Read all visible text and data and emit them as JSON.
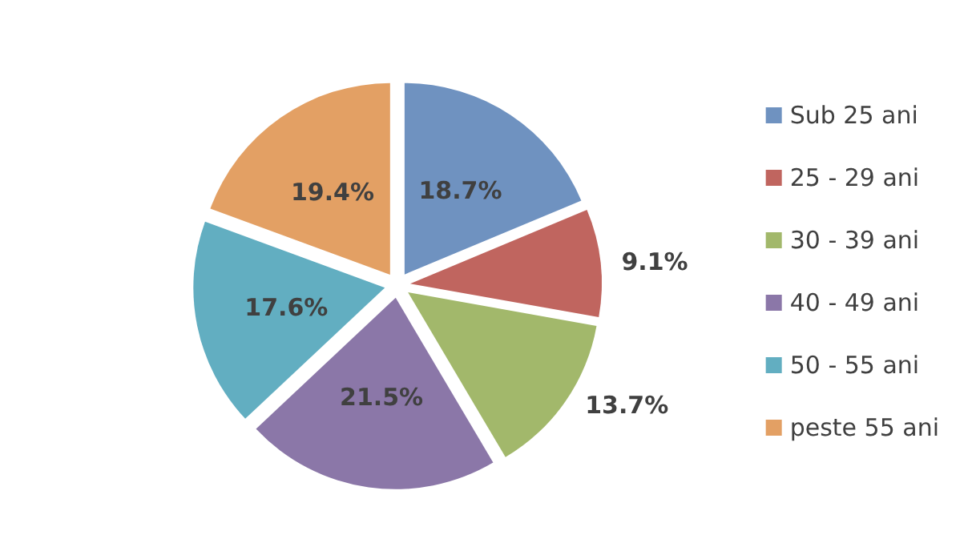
{
  "chart_data": {
    "type": "pie",
    "categories": [
      "Sub 25 ani",
      "25 - 29 ani",
      "30 - 39 ani",
      "40 - 49 ani",
      "50 - 55 ani",
      "peste 55 ani"
    ],
    "values": [
      18.7,
      9.1,
      13.7,
      21.5,
      17.6,
      19.4
    ],
    "colors": [
      "#6f92c0",
      "#c0655f",
      "#a2b86b",
      "#8b77a8",
      "#62aec1",
      "#e3a064"
    ],
    "value_labels": [
      "18.7%",
      "9.1%",
      "13.7%",
      "21.5%",
      "17.6%",
      "19.4%"
    ],
    "legend": "right"
  }
}
